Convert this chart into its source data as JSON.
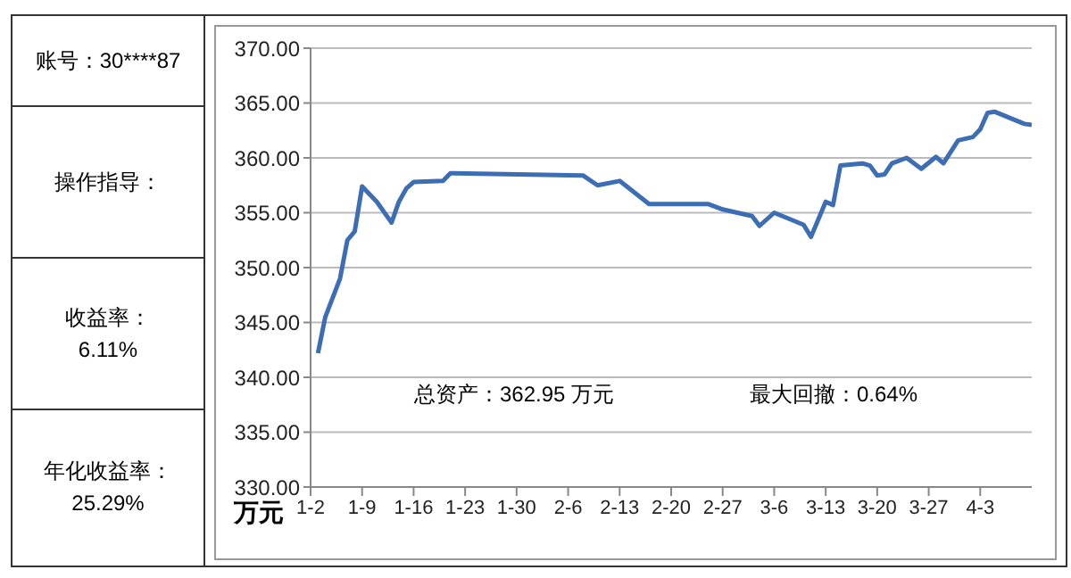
{
  "chart_data": {
    "type": "line",
    "ylabel": "万元",
    "color": "#3d6eb4",
    "x": [
      "--01-03",
      "--01-04",
      "--01-06",
      "--01-07",
      "--01-08",
      "--01-09",
      "--01-11",
      "--01-13",
      "--01-14",
      "--01-15",
      "--01-16",
      "--01-20",
      "--01-21",
      "--02-08",
      "--02-10",
      "--02-13",
      "--02-17",
      "--02-25",
      "--02-27",
      "--03-03",
      "--03-04",
      "--03-06",
      "--03-10",
      "--03-11",
      "--03-13",
      "--03-14",
      "--03-15",
      "--03-18",
      "--03-19",
      "--03-20",
      "--03-21",
      "--03-22",
      "--03-24",
      "--03-26",
      "--03-28",
      "--03-29",
      "--03-31",
      "--04-02",
      "--04-03",
      "--04-04",
      "--04-05",
      "--04-09",
      "--04-10"
    ],
    "values": [
      342.2,
      345.5,
      349.0,
      352.5,
      353.3,
      357.4,
      356.0,
      354.1,
      356.0,
      357.2,
      357.8,
      357.9,
      358.6,
      358.4,
      357.5,
      357.9,
      355.8,
      355.8,
      355.3,
      354.7,
      353.8,
      355.0,
      353.9,
      352.8,
      356.0,
      355.7,
      359.3,
      359.5,
      359.3,
      358.4,
      358.5,
      359.5,
      360.0,
      359.0,
      360.1,
      359.5,
      361.6,
      361.9,
      362.6,
      364.1,
      364.2,
      363.1,
      363.0
    ],
    "xlim": [
      "--01-02",
      "--04-10"
    ],
    "xticks": [
      {
        "value": "--01-02",
        "label": "1-2"
      },
      {
        "value": "--01-09",
        "label": "1-9"
      },
      {
        "value": "--01-16",
        "label": "1-16"
      },
      {
        "value": "--01-23",
        "label": "1-23"
      },
      {
        "value": "--01-30",
        "label": "1-30"
      },
      {
        "value": "--02-06",
        "label": "2-6"
      },
      {
        "value": "--02-13",
        "label": "2-13"
      },
      {
        "value": "--02-20",
        "label": "2-20"
      },
      {
        "value": "--02-27",
        "label": "2-27"
      },
      {
        "value": "--03-06",
        "label": "3-6"
      },
      {
        "value": "--03-13",
        "label": "3-13"
      },
      {
        "value": "--03-20",
        "label": "3-20"
      },
      {
        "value": "--03-27",
        "label": "3-27"
      },
      {
        "value": "--04-03",
        "label": "4-3"
      }
    ],
    "ylim": [
      330,
      370
    ],
    "yticks": [
      {
        "value": 330,
        "label": "330.00"
      },
      {
        "value": 335,
        "label": "335.00"
      },
      {
        "value": 340,
        "label": "340.00"
      },
      {
        "value": 345,
        "label": "345.00"
      },
      {
        "value": 350,
        "label": "350.00"
      },
      {
        "value": 355,
        "label": "355.00"
      },
      {
        "value": 360,
        "label": "360.00"
      },
      {
        "value": 365,
        "label": "365.00"
      },
      {
        "value": 370,
        "label": "370.00"
      }
    ],
    "grid": "y",
    "line_style": "solid",
    "annotations": [
      "账号：30****87",
      "操作指导：",
      "收益率：\n6.11%",
      "年化收益率：\n25.29%",
      "总资产：362.95 万元",
      "最大回撤：0.64%"
    ]
  }
}
